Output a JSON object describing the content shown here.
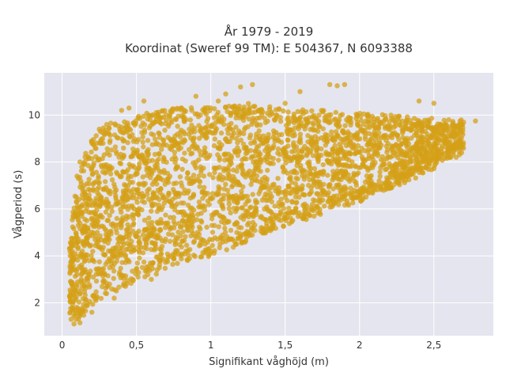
{
  "chart_data": {
    "type": "scatter",
    "title": "År 1979 - 2019",
    "subtitle": "Koordinat (Sweref 99 TM): E 504367, N 6093388",
    "xlabel": "Signifikant våghöjd (m)",
    "ylabel": "Vågperiod (s)",
    "xlim": [
      -0.12,
      2.9
    ],
    "ylim": [
      0.6,
      11.8
    ],
    "x_ticks": [
      0,
      0.5,
      1,
      1.5,
      2,
      2.5
    ],
    "x_tick_labels": [
      "0",
      "0,5",
      "1",
      "1,5",
      "2",
      "2,5"
    ],
    "y_ticks": [
      2,
      4,
      6,
      8,
      10
    ],
    "y_tick_labels": [
      "2",
      "4",
      "6",
      "8",
      "10"
    ],
    "grid": true,
    "marker_color": "#d4a017",
    "background_color": "#e5e5ef",
    "envelope": [
      {
        "x": 0.05,
        "lower": 1.2,
        "upper": 4.5
      },
      {
        "x": 0.1,
        "lower": 1.2,
        "upper": 7.5
      },
      {
        "x": 0.2,
        "lower": 1.8,
        "upper": 9.0
      },
      {
        "x": 0.3,
        "lower": 2.3,
        "upper": 9.6
      },
      {
        "x": 0.5,
        "lower": 2.9,
        "upper": 10.0
      },
      {
        "x": 0.75,
        "lower": 3.5,
        "upper": 10.3
      },
      {
        "x": 1.0,
        "lower": 4.0,
        "upper": 10.4
      },
      {
        "x": 1.25,
        "lower": 4.6,
        "upper": 10.5
      },
      {
        "x": 1.5,
        "lower": 5.2,
        "upper": 10.3
      },
      {
        "x": 1.75,
        "lower": 5.8,
        "upper": 10.2
      },
      {
        "x": 2.0,
        "lower": 6.3,
        "upper": 10.1
      },
      {
        "x": 2.25,
        "lower": 6.9,
        "upper": 10.0
      },
      {
        "x": 2.5,
        "lower": 7.7,
        "upper": 9.9
      },
      {
        "x": 2.7,
        "lower": 8.4,
        "upper": 9.8
      }
    ],
    "points": [
      [
        0.06,
        1.3
      ],
      [
        0.08,
        1.1
      ],
      [
        0.12,
        1.15
      ],
      [
        0.05,
        2.3
      ],
      [
        0.07,
        4.6
      ],
      [
        0.1,
        7.4
      ],
      [
        0.12,
        8.0
      ],
      [
        0.15,
        7.9
      ],
      [
        0.2,
        8.8
      ],
      [
        0.25,
        9.4
      ],
      [
        0.3,
        9.6
      ],
      [
        0.4,
        10.2
      ],
      [
        0.45,
        10.3
      ],
      [
        0.55,
        10.6
      ],
      [
        0.6,
        9.2
      ],
      [
        0.8,
        10.3
      ],
      [
        0.9,
        10.8
      ],
      [
        1.05,
        10.6
      ],
      [
        1.1,
        10.9
      ],
      [
        1.2,
        11.2
      ],
      [
        1.28,
        11.3
      ],
      [
        1.5,
        10.5
      ],
      [
        1.6,
        11.0
      ],
      [
        1.8,
        11.3
      ],
      [
        1.85,
        11.25
      ],
      [
        1.9,
        11.3
      ],
      [
        1.5,
        6.5
      ],
      [
        1.7,
        6.0
      ],
      [
        2.0,
        6.6
      ],
      [
        2.2,
        6.9
      ],
      [
        2.35,
        9.6
      ],
      [
        2.4,
        10.6
      ],
      [
        2.5,
        10.5
      ],
      [
        2.6,
        9.8
      ],
      [
        2.7,
        9.7
      ],
      [
        2.78,
        9.75
      ],
      [
        2.55,
        8.3
      ],
      [
        2.6,
        8.4
      ],
      [
        2.65,
        8.2
      ],
      [
        0.2,
        1.6
      ],
      [
        0.35,
        2.2
      ],
      [
        0.6,
        3.0
      ],
      [
        1.0,
        4.2
      ],
      [
        1.2,
        4.8
      ],
      [
        0.15,
        3.3
      ]
    ]
  }
}
